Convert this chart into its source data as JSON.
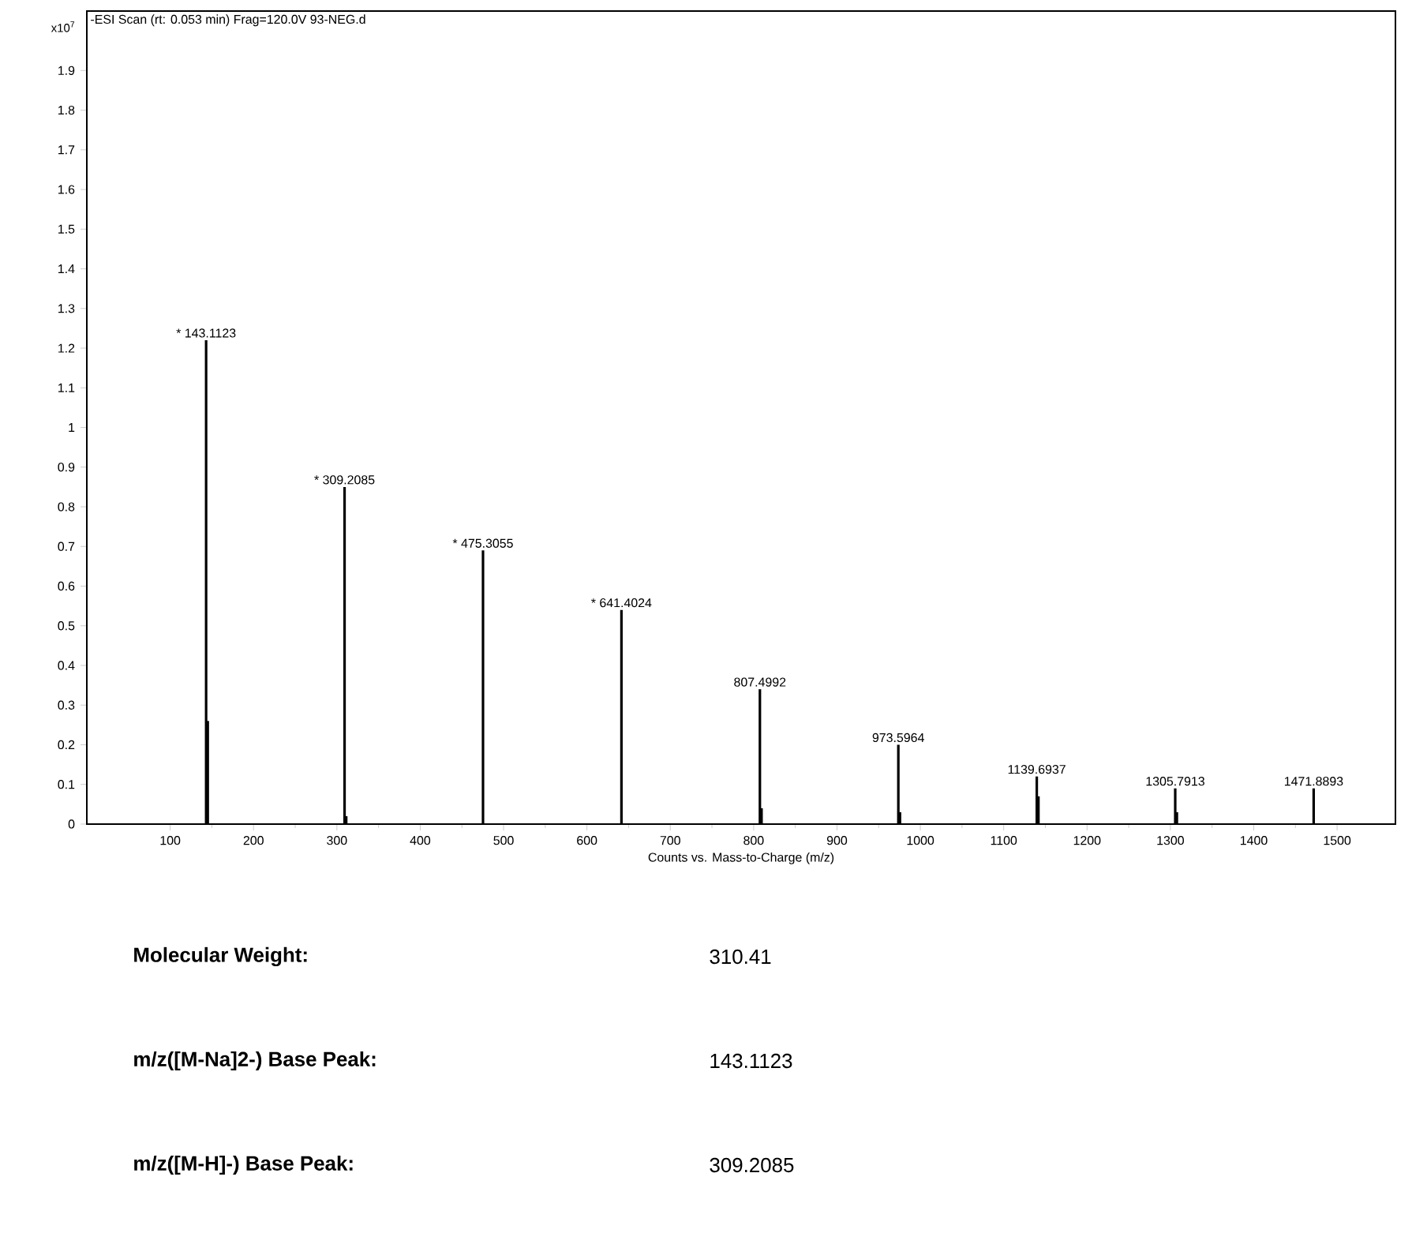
{
  "chart_data": {
    "type": "bar",
    "title": "-ESI Scan (rt: 0.053 min) Frag=120.0V 93-NEG.d",
    "xlabel": "Counts vs. Mass-to-Charge (m/z)",
    "x": [
      143.1123,
      145.1,
      309.2085,
      311.2,
      475.3055,
      641.4024,
      807.4992,
      809.5,
      973.5964,
      975.6,
      1139.6937,
      1141.7,
      1305.7913,
      1307.8,
      1471.8893
    ],
    "color": "#000000",
    "values": [
      1.22,
      0.26,
      0.85,
      0.02,
      0.69,
      0.54,
      0.34,
      0.04,
      0.2,
      0.03,
      0.12,
      0.07,
      0.09,
      0.03,
      0.09
    ],
    "xlim": [
      0,
      1570
    ],
    "ylim": [
      0,
      2.05
    ],
    "xticks": [
      100,
      200,
      300,
      400,
      500,
      600,
      700,
      800,
      900,
      1000,
      1100,
      1200,
      1300,
      1400,
      1500
    ],
    "yticks": [
      0,
      0.1,
      0.2,
      0.3,
      0.4,
      0.5,
      0.6,
      0.7,
      0.8,
      0.9,
      1,
      1.1,
      1.2,
      1.3,
      1.4,
      1.5,
      1.6,
      1.7,
      1.8,
      1.9
    ],
    "annotations": [
      "x10$^{7}$",
      {
        "text": "* 143.1123",
        "x": 143.1123,
        "y": 1.22
      },
      {
        "text": "* 309.2085",
        "x": 309.2085,
        "y": 0.85
      },
      {
        "text": "* 475.3055",
        "x": 475.3055,
        "y": 0.69
      },
      {
        "text": "* 641.4024",
        "x": 641.4024,
        "y": 0.54
      },
      {
        "text": "807.4992",
        "x": 807.4992,
        "y": 0.34
      },
      {
        "text": "973.5964",
        "x": 973.5964,
        "y": 0.2
      },
      {
        "text": "1139.6937",
        "x": 1139.6937,
        "y": 0.12
      },
      {
        "text": "1305.7913",
        "x": 1305.7913,
        "y": 0.09
      },
      {
        "text": "1471.8893",
        "x": 1471.8893,
        "y": 0.09
      },
      "Molecular Weight:",
      "310.41",
      "m/z([M-Na]2-) Base Peak:",
      "143.1123",
      "m/z([M-H]-) Base Peak:",
      "309.2085"
    ]
  }
}
